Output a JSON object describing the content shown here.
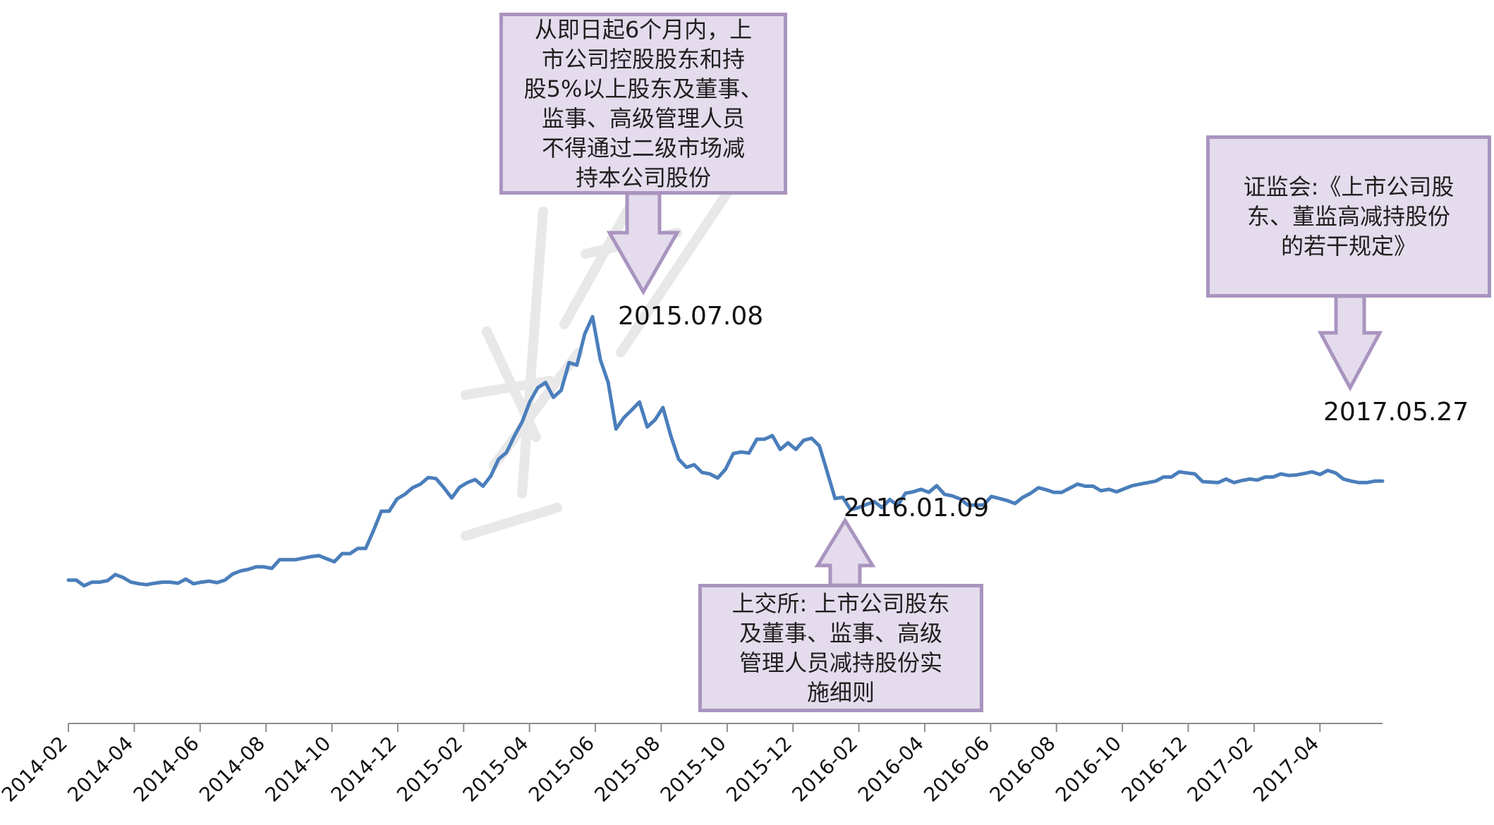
{
  "chart_data": {
    "type": "line",
    "title": "",
    "xlabel": "",
    "ylabel": "",
    "x_tick_labels": [
      "2014-02",
      "2014-04",
      "2014-06",
      "2014-08",
      "2014-10",
      "2014-12",
      "2015-02",
      "2015-04",
      "2015-06",
      "2015-08",
      "2015-10",
      "2015-12",
      "2016-02",
      "2016-04",
      "2016-06",
      "2016-08",
      "2016-10",
      "2016-12",
      "2017-02",
      "2017-04"
    ],
    "y_axis_visible": false,
    "grid": false,
    "legend": "none",
    "x_start": "2014-02",
    "x_end": "2017-05",
    "ylim": [
      0,
      100
    ],
    "series": [
      {
        "name": "",
        "color": "#4a7ebb",
        "values": [
          27.8,
          27.8,
          26.7,
          27.4,
          27.4,
          27.7,
          28.9,
          28.3,
          27.4,
          27.1,
          26.9,
          27.2,
          27.4,
          27.4,
          27.2,
          28.0,
          27.1,
          27.4,
          27.6,
          27.3,
          27.8,
          29.0,
          29.6,
          29.9,
          30.4,
          30.4,
          30.1,
          31.8,
          31.8,
          31.8,
          32.1,
          32.4,
          32.6,
          32.0,
          31.4,
          33.0,
          33.0,
          34.0,
          34.0,
          37.5,
          41.3,
          41.3,
          43.7,
          44.6,
          45.9,
          46.6,
          47.9,
          47.7,
          45.9,
          43.9,
          46.0,
          46.9,
          47.5,
          46.2,
          48.2,
          51.5,
          52.8,
          56.0,
          58.8,
          62.8,
          65.5,
          66.5,
          63.6,
          65.0,
          70.4,
          69.9,
          76.0,
          79.4,
          71.0,
          66.5,
          57.4,
          59.6,
          61.1,
          62.7,
          57.8,
          59.2,
          61.6,
          56.1,
          51.5,
          49.9,
          50.4,
          48.9,
          48.6,
          47.8,
          49.5,
          52.6,
          52.9,
          52.7,
          55.4,
          55.4,
          56.1,
          53.4,
          54.7,
          53.4,
          55.2,
          55.6,
          54.1,
          49.0,
          43.8,
          44.0,
          41.6,
          42.0,
          42.6,
          43.2,
          42.0,
          43.6,
          42.4,
          44.8,
          45.1,
          45.6,
          45.0,
          46.3,
          44.6,
          44.3,
          43.7,
          42.5,
          42.5,
          42.5,
          44.2,
          43.8,
          43.4,
          42.8,
          44.0,
          44.8,
          45.9,
          45.5,
          45.0,
          45.0,
          45.8,
          46.6,
          46.2,
          46.2,
          45.3,
          45.6,
          45.1,
          45.7,
          46.3,
          46.6,
          46.9,
          47.2,
          48.0,
          48.0,
          49.0,
          48.8,
          48.6,
          47.1,
          47.0,
          46.9,
          47.6,
          46.9,
          47.3,
          47.6,
          47.4,
          48.0,
          48.0,
          48.6,
          48.3,
          48.4,
          48.7,
          49.0,
          48.5,
          49.3,
          48.8,
          47.6,
          47.2,
          46.9,
          46.9,
          47.2,
          47.2
        ]
      }
    ],
    "annotations": [
      {
        "date": "2015.07.08",
        "text": "从即日起6个月内，上\n市公司控股股东和持\n股5%以上股东及董事、\n监事、高级管理人员\n不得通过二级市场减\n持本公司股份"
      },
      {
        "date": "2016.01.09",
        "text": "上交所: 上市公司股东\n及董事、监事、高级\n管理人员减持股份实\n施细则"
      },
      {
        "date": "2017.05.27",
        "text": "证监会:《上市公司股\n东、董监高减持股份\n的若干规定》"
      }
    ]
  },
  "colors": {
    "line": "#4a7ebb",
    "callout_fill": "#e4dcec",
    "callout_border": "#a994bf",
    "axis": "#8c8c8c"
  }
}
